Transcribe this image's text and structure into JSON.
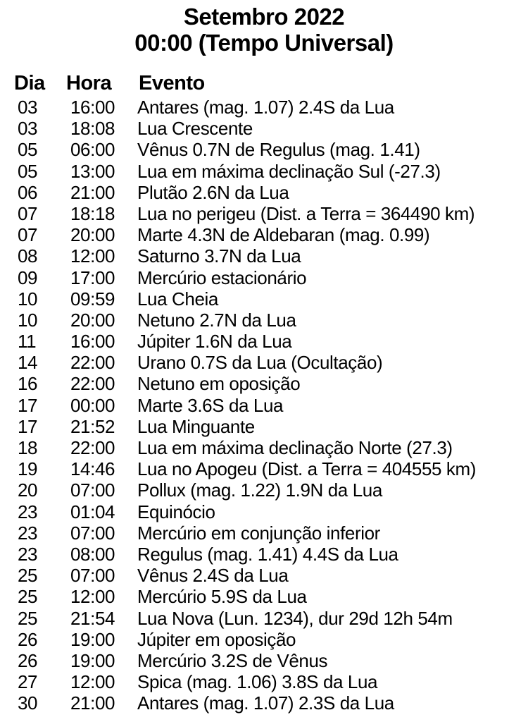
{
  "title": {
    "line1": "Setembro 2022",
    "line2": "00:00 (Tempo Universal)"
  },
  "table": {
    "headers": {
      "day": "Dia",
      "time": "Hora",
      "event": "Evento"
    },
    "rows": [
      {
        "day": "03",
        "time": "16:00",
        "event": "Antares (mag. 1.07) 2.4S da Lua"
      },
      {
        "day": "03",
        "time": "18:08",
        "event": "Lua Crescente"
      },
      {
        "day": "05",
        "time": "06:00",
        "event": "Vênus 0.7N de Regulus (mag. 1.41)"
      },
      {
        "day": "05",
        "time": "13:00",
        "event": "Lua em máxima declinação Sul (-27.3)"
      },
      {
        "day": "06",
        "time": "21:00",
        "event": "Plutão 2.6N da Lua"
      },
      {
        "day": "07",
        "time": "18:18",
        "event": "Lua no perigeu (Dist. a Terra = 364490 km)"
      },
      {
        "day": "07",
        "time": "20:00",
        "event": "Marte 4.3N de Aldebaran (mag. 0.99)"
      },
      {
        "day": "08",
        "time": "12:00",
        "event": "Saturno 3.7N da Lua"
      },
      {
        "day": "09",
        "time": "17:00",
        "event": "Mercúrio estacionário"
      },
      {
        "day": "10",
        "time": "09:59",
        "event": "Lua Cheia"
      },
      {
        "day": "10",
        "time": "20:00",
        "event": "Netuno 2.7N da Lua"
      },
      {
        "day": "11",
        "time": "16:00",
        "event": "Júpiter 1.6N da Lua"
      },
      {
        "day": "14",
        "time": "22:00",
        "event": "Urano 0.7S da Lua (Ocultação)"
      },
      {
        "day": "16",
        "time": "22:00",
        "event": "Netuno em oposição"
      },
      {
        "day": "17",
        "time": "00:00",
        "event": "Marte 3.6S da Lua"
      },
      {
        "day": "17",
        "time": "21:52",
        "event": "Lua Minguante"
      },
      {
        "day": "18",
        "time": "22:00",
        "event": "Lua em máxima declinação Norte (27.3)"
      },
      {
        "day": "19",
        "time": "14:46",
        "event": "Lua no Apogeu (Dist. a Terra = 404555 km)"
      },
      {
        "day": "20",
        "time": "07:00",
        "event": "Pollux (mag. 1.22) 1.9N da Lua"
      },
      {
        "day": "23",
        "time": "01:04",
        "event": "Equinócio"
      },
      {
        "day": "23",
        "time": "07:00",
        "event": "Mercúrio em conjunção inferior"
      },
      {
        "day": "23",
        "time": "08:00",
        "event": "Regulus (mag. 1.41) 4.4S da Lua"
      },
      {
        "day": "25",
        "time": "07:00",
        "event": "Vênus 2.4S da Lua"
      },
      {
        "day": "25",
        "time": "12:00",
        "event": "Mercúrio 5.9S da Lua"
      },
      {
        "day": "25",
        "time": "21:54",
        "event": "Lua Nova (Lun. 1234), dur 29d 12h 54m"
      },
      {
        "day": "26",
        "time": "19:00",
        "event": "Júpiter em oposição"
      },
      {
        "day": "26",
        "time": "19:00",
        "event": "Mercúrio 3.2S de Vênus"
      },
      {
        "day": "27",
        "time": "12:00",
        "event": "Spica (mag. 1.06) 3.8S da Lua"
      },
      {
        "day": "30",
        "time": "21:00",
        "event": "Antares (mag. 1.07) 2.3S da Lua"
      }
    ]
  },
  "colors": {
    "text": "#000000",
    "background": "#ffffff"
  }
}
